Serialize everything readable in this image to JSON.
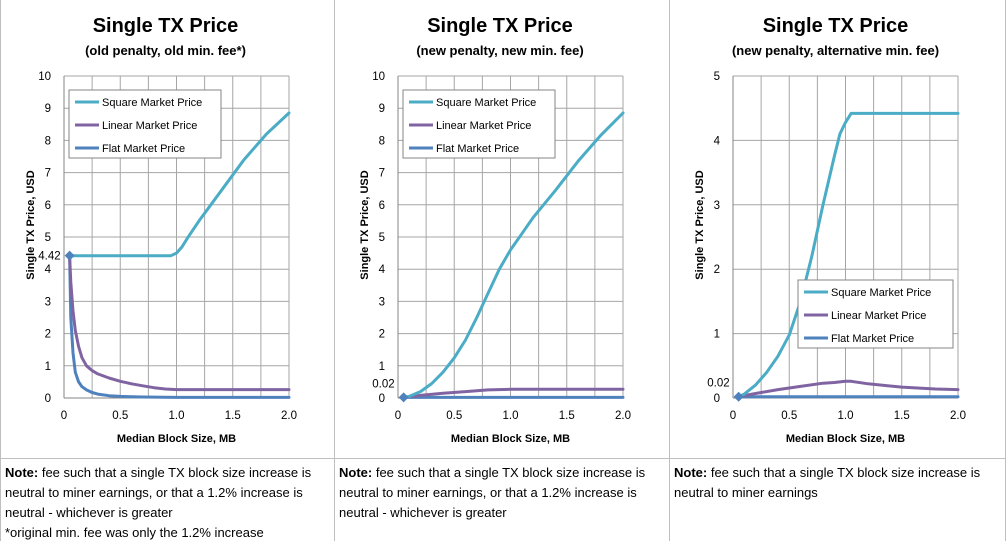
{
  "chart_data": [
    {
      "type": "line",
      "title": "Single TX Price",
      "subtitle": "(old penalty, old min. fee*)",
      "xlabel": "Median Block Size, MB",
      "ylabel": "Single TX Price, USD",
      "xlim": [
        0,
        2.0
      ],
      "ylim": [
        0,
        10
      ],
      "x_ticks": [
        "0",
        "0.5",
        "1.0",
        "1.5",
        "2.0"
      ],
      "y_ticks": [
        "0",
        "1",
        "2",
        "3",
        "4",
        "5",
        "6",
        "7",
        "8",
        "9",
        "10"
      ],
      "grid": true,
      "legend_position": "top-left",
      "annotation": {
        "label": "4.42",
        "x": 0.05,
        "y": 4.42
      },
      "series": [
        {
          "name": "Square Market Price",
          "color": "#4bacc6",
          "x": [
            0.05,
            0.2,
            0.4,
            0.6,
            0.8,
            0.95,
            1.0,
            1.05,
            1.1,
            1.2,
            1.4,
            1.6,
            1.8,
            2.0
          ],
          "y": [
            4.42,
            4.42,
            4.42,
            4.42,
            4.42,
            4.42,
            4.5,
            4.7,
            4.98,
            5.5,
            6.45,
            7.4,
            8.2,
            8.85
          ]
        },
        {
          "name": "Linear Market Price",
          "color": "#8064a2",
          "x": [
            0.05,
            0.06,
            0.08,
            0.1,
            0.13,
            0.16,
            0.2,
            0.25,
            0.3,
            0.4,
            0.5,
            0.6,
            0.7,
            0.8,
            0.9,
            1.0,
            1.2,
            1.5,
            2.0
          ],
          "y": [
            4.42,
            3.6,
            2.7,
            2.1,
            1.6,
            1.25,
            1.0,
            0.85,
            0.75,
            0.62,
            0.52,
            0.44,
            0.38,
            0.32,
            0.28,
            0.26,
            0.26,
            0.26,
            0.26
          ]
        },
        {
          "name": "Flat Market Price",
          "color": "#4f81bd",
          "x": [
            0.05,
            0.06,
            0.08,
            0.1,
            0.13,
            0.16,
            0.2,
            0.25,
            0.3,
            0.4,
            0.5,
            0.7,
            1.0,
            1.5,
            2.0
          ],
          "y": [
            4.42,
            2.5,
            1.4,
            0.8,
            0.5,
            0.35,
            0.25,
            0.17,
            0.12,
            0.07,
            0.05,
            0.03,
            0.02,
            0.02,
            0.02
          ]
        }
      ]
    },
    {
      "type": "line",
      "title": "Single TX Price",
      "subtitle": "(new penalty, new min. fee)",
      "xlabel": "Median Block Size, MB",
      "ylabel": "Single TX Price, USD",
      "xlim": [
        0,
        2.0
      ],
      "ylim": [
        0,
        10
      ],
      "x_ticks": [
        "0",
        "0.5",
        "1.0",
        "1.5",
        "2.0"
      ],
      "y_ticks": [
        "0",
        "1",
        "2",
        "3",
        "4",
        "5",
        "6",
        "7",
        "8",
        "9",
        "10"
      ],
      "grid": true,
      "legend_position": "top-left",
      "annotation": {
        "label": "0.02",
        "x": 0.05,
        "y": 0.02
      },
      "series": [
        {
          "name": "Square Market Price",
          "color": "#4bacc6",
          "x": [
            0.05,
            0.1,
            0.2,
            0.3,
            0.4,
            0.5,
            0.6,
            0.7,
            0.8,
            0.9,
            1.0,
            1.1,
            1.2,
            1.4,
            1.6,
            1.8,
            2.0
          ],
          "y": [
            0.02,
            0.05,
            0.2,
            0.45,
            0.8,
            1.25,
            1.8,
            2.5,
            3.25,
            4.0,
            4.6,
            5.1,
            5.6,
            6.45,
            7.35,
            8.15,
            8.85
          ]
        },
        {
          "name": "Linear Market Price",
          "color": "#8064a2",
          "x": [
            0.05,
            0.2,
            0.4,
            0.6,
            0.8,
            1.0,
            1.2,
            1.5,
            2.0
          ],
          "y": [
            0.02,
            0.08,
            0.15,
            0.2,
            0.25,
            0.27,
            0.27,
            0.27,
            0.27
          ]
        },
        {
          "name": "Flat Market Price",
          "color": "#4f81bd",
          "x": [
            0.05,
            0.5,
            1.0,
            1.5,
            2.0
          ],
          "y": [
            0.02,
            0.02,
            0.02,
            0.02,
            0.02
          ]
        }
      ]
    },
    {
      "type": "line",
      "title": "Single TX Price",
      "subtitle": "(new penalty, alternative min. fee)",
      "xlabel": "Median Block Size, MB",
      "ylabel": "Single TX Price, USD",
      "xlim": [
        0,
        2.0
      ],
      "ylim": [
        0,
        5
      ],
      "x_ticks": [
        "0",
        "0.5",
        "1.0",
        "1.5",
        "2.0"
      ],
      "y_ticks": [
        "0",
        "1",
        "2",
        "3",
        "4",
        "5"
      ],
      "grid": true,
      "legend_position": "bottom-right",
      "annotation": {
        "label": "0.02",
        "x": 0.05,
        "y": 0.02
      },
      "series": [
        {
          "name": "Square Market Price",
          "color": "#4bacc6",
          "x": [
            0.05,
            0.1,
            0.2,
            0.3,
            0.4,
            0.5,
            0.6,
            0.7,
            0.8,
            0.9,
            0.95,
            1.0,
            1.05,
            1.2,
            1.5,
            2.0
          ],
          "y": [
            0.02,
            0.06,
            0.2,
            0.4,
            0.65,
            0.98,
            1.5,
            2.2,
            3.0,
            3.75,
            4.1,
            4.28,
            4.42,
            4.42,
            4.42,
            4.42
          ]
        },
        {
          "name": "Linear Market Price",
          "color": "#8064a2",
          "x": [
            0.05,
            0.2,
            0.4,
            0.6,
            0.8,
            0.9,
            1.0,
            1.05,
            1.2,
            1.5,
            1.8,
            2.0
          ],
          "y": [
            0.02,
            0.07,
            0.13,
            0.18,
            0.23,
            0.24,
            0.26,
            0.26,
            0.22,
            0.17,
            0.14,
            0.13
          ]
        },
        {
          "name": "Flat Market Price",
          "color": "#4f81bd",
          "x": [
            0.05,
            0.5,
            1.0,
            1.5,
            2.0
          ],
          "y": [
            0.02,
            0.02,
            0.02,
            0.02,
            0.02
          ]
        }
      ]
    }
  ],
  "notes": [
    {
      "label": "Note:",
      "lines": [
        "fee such that a single TX block size increase is neutral to miner earnings, or that a 1.2% increase is neutral - whichever is greater",
        "*original min. fee was only the 1.2% increase"
      ]
    },
    {
      "label": "Note:",
      "lines": [
        "fee such that a single TX block size increase is neutral to miner earnings, or that a 1.2% increase is neutral - whichever is greater"
      ]
    },
    {
      "label": "Note:",
      "lines": [
        "fee such that a single TX block size increase is neutral to miner earnings"
      ]
    }
  ]
}
